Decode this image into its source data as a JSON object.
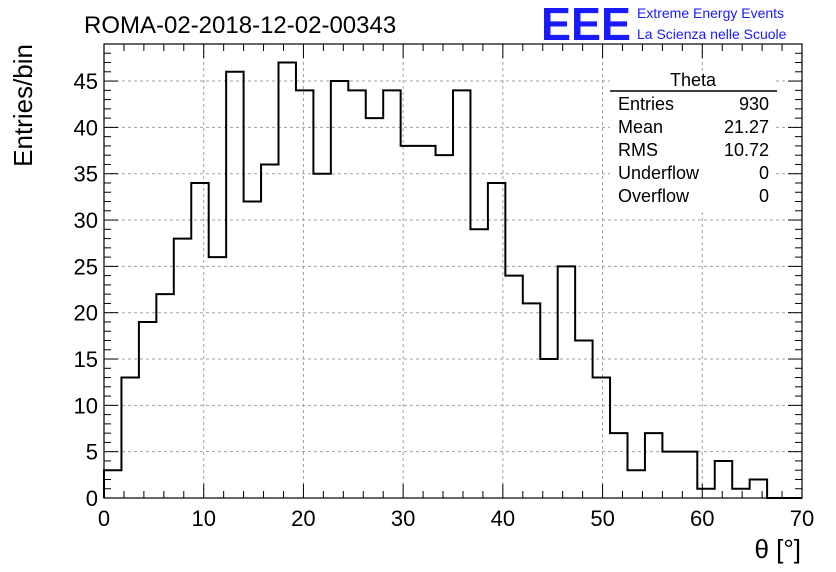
{
  "chart_data": {
    "type": "bar",
    "title": "ROMA-02-2018-12-02-00343",
    "xlabel": "θ [°]",
    "ylabel": "Entries/bin",
    "xlim": [
      0,
      70
    ],
    "ylim": [
      0,
      49
    ],
    "bin_width": 1.75,
    "grid": true,
    "x_ticks": [
      0,
      10,
      20,
      30,
      40,
      50,
      60,
      70
    ],
    "y_ticks": [
      0,
      5,
      10,
      15,
      20,
      25,
      30,
      35,
      40,
      45
    ],
    "values": [
      3,
      13,
      19,
      22,
      28,
      34,
      26,
      46,
      32,
      36,
      47,
      44,
      35,
      45,
      44,
      41,
      44,
      38,
      38,
      37,
      44,
      29,
      34,
      24,
      21,
      15,
      25,
      17,
      13,
      7,
      3,
      7,
      5,
      5,
      1,
      4,
      1,
      2,
      0,
      0
    ],
    "line_color": "#000000"
  },
  "stats_box": {
    "title": "Theta",
    "rows": [
      {
        "label": "Entries",
        "value": "930"
      },
      {
        "label": "Mean",
        "value": "21.27"
      },
      {
        "label": "RMS",
        "value": "10.72"
      },
      {
        "label": "Underflow",
        "value": "0"
      },
      {
        "label": "Overflow",
        "value": "0"
      }
    ]
  },
  "logo": {
    "mark": "EEE",
    "line1": "Extreme Energy Events",
    "line2": "La Scienza nelle Scuole",
    "color": "#1a1aff"
  }
}
